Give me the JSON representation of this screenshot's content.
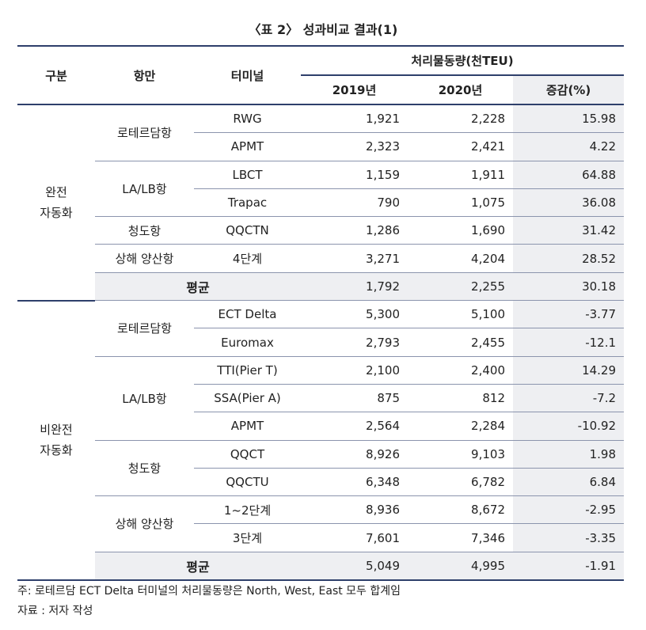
{
  "title": "〈표 2〉 성과비교 결과(1)",
  "header": {
    "group": "구분",
    "port": "항만",
    "terminal": "터미널",
    "volume": "처리물동량(천TEU)",
    "y2019": "2019년",
    "y2020": "2020년",
    "change": "증감(%)"
  },
  "sections": [
    {
      "label": [
        "완전",
        "자동화"
      ],
      "ports": [
        {
          "name": "로테르담항",
          "terminals": [
            [
              "RWG",
              "1,921",
              "2,228",
              "15.98"
            ],
            [
              "APMT",
              "2,323",
              "2,421",
              "4.22"
            ]
          ]
        },
        {
          "name": "LA/LB항",
          "terminals": [
            [
              "LBCT",
              "1,159",
              "1,911",
              "64.88"
            ],
            [
              "Trapac",
              "790",
              "1,075",
              "36.08"
            ]
          ]
        },
        {
          "name": "청도항",
          "terminals": [
            [
              "QQCTN",
              "1,286",
              "1,690",
              "31.42"
            ]
          ]
        },
        {
          "name": "상해 양산항",
          "terminals": [
            [
              "4단계",
              "3,271",
              "4,204",
              "28.52"
            ]
          ]
        }
      ],
      "average": {
        "label": "평균",
        "values": [
          "1,792",
          "2,255",
          "30.18"
        ]
      }
    },
    {
      "label": [
        "비완전",
        "자동화"
      ],
      "ports": [
        {
          "name": "로테르담항",
          "terminals": [
            [
              "ECT Delta",
              "5,300",
              "5,100",
              "-3.77"
            ],
            [
              "Euromax",
              "2,793",
              "2,455",
              "-12.1"
            ]
          ]
        },
        {
          "name": "LA/LB항",
          "terminals": [
            [
              "TTI(Pier T)",
              "2,100",
              "2,400",
              "14.29"
            ],
            [
              "SSA(Pier A)",
              "875",
              "812",
              "-7.2"
            ],
            [
              "APMT",
              "2,564",
              "2,284",
              "-10.92"
            ]
          ]
        },
        {
          "name": "청도항",
          "terminals": [
            [
              "QQCT",
              "8,926",
              "9,103",
              "1.98"
            ],
            [
              "QQCTU",
              "6,348",
              "6,782",
              "6.84"
            ]
          ]
        },
        {
          "name": "상해 양산항",
          "terminals": [
            [
              "1~2단계",
              "8,936",
              "8,672",
              "-2.95"
            ],
            [
              "3단계",
              "7,601",
              "7,346",
              "-3.35"
            ]
          ]
        }
      ],
      "average": {
        "label": "평균",
        "values": [
          "5,049",
          "4,995",
          "-1.91"
        ]
      }
    }
  ],
  "notes": [
    "주: 로테르담 ECT Delta 터미널의 처리물동량은 North, West, East 모두 합계임",
    "자료 : 저자 작성"
  ]
}
